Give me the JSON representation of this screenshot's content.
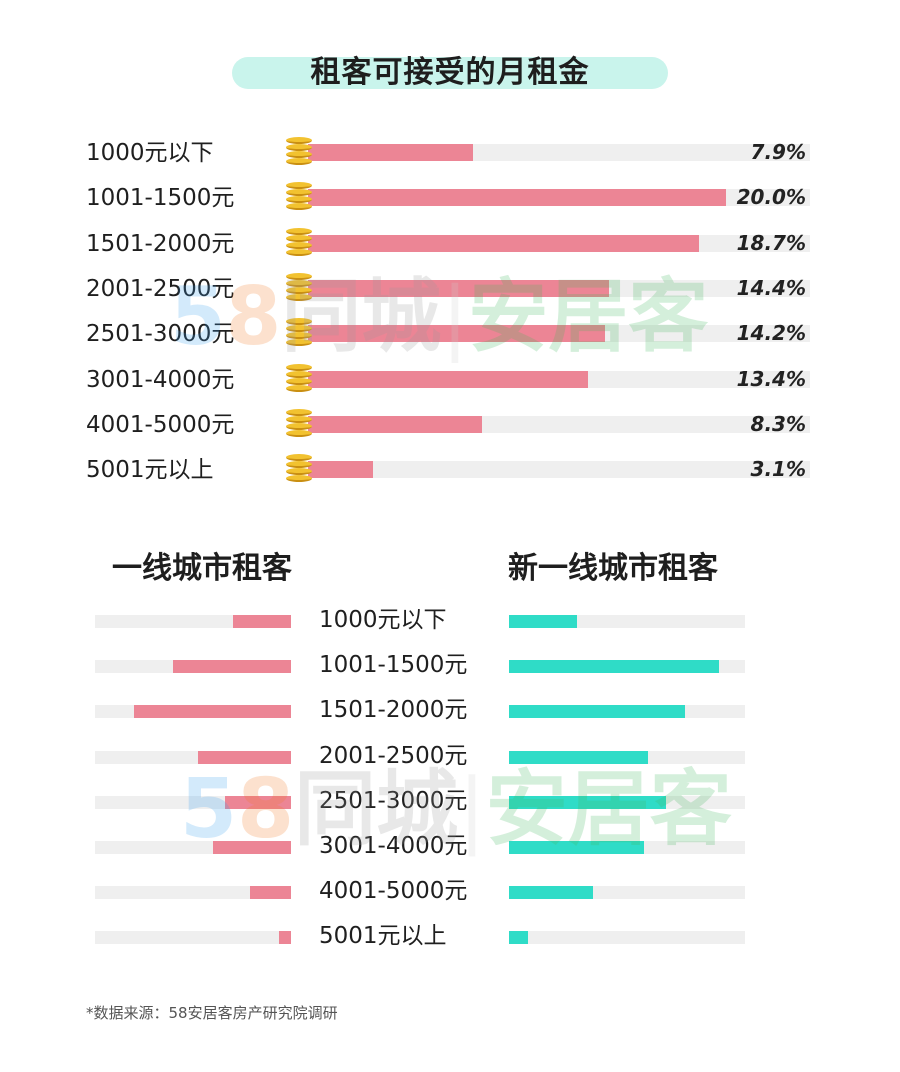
{
  "title": "租客可接受的月租金",
  "chart_data": [
    {
      "type": "bar",
      "orientation": "horizontal",
      "title": "租客可接受的月租金",
      "categories": [
        "1000元以下",
        "1001-1500元",
        "1501-2000元",
        "2001-2500元",
        "2501-3000元",
        "3001-4000元",
        "4001-5000元",
        "5001元以上"
      ],
      "values": [
        7.9,
        20.0,
        18.7,
        14.4,
        14.2,
        13.4,
        8.3,
        3.1
      ],
      "value_labels": [
        "7.9%",
        "20.0%",
        "18.7%",
        "14.4%",
        "14.2%",
        "13.4%",
        "8.3%",
        "3.1%"
      ],
      "unit": "%",
      "xlim": [
        0,
        24
      ],
      "colors": {
        "bar": "#ec8595",
        "track": "#efefef",
        "coin": "#f2c230"
      }
    },
    {
      "type": "bar",
      "orientation": "horizontal",
      "layout": "back-to-back",
      "categories": [
        "1000元以下",
        "1001-1500元",
        "1501-2000元",
        "2001-2500元",
        "2501-3000元",
        "3001-4000元",
        "4001-5000元",
        "5001元以上"
      ],
      "series": [
        {
          "name": "一线城市租客",
          "direction": "left",
          "values": [
            6.5,
            13.2,
            17.6,
            10.4,
            7.4,
            8.8,
            4.6,
            1.4
          ],
          "color": "#ec8595"
        },
        {
          "name": "新一线城市租客",
          "direction": "right",
          "values": [
            6.3,
            19.6,
            16.4,
            13.0,
            14.6,
            12.6,
            7.8,
            1.8
          ],
          "color": "#2fdcc7"
        }
      ],
      "unit": "%",
      "xlim": [
        0,
        22
      ],
      "colors": {
        "track": "#efefef"
      }
    }
  ],
  "watermark": {
    "num": "58",
    "tc": "同城",
    "sep": "|",
    "ajk": "安居客"
  },
  "source": "*数据来源：58安居客房产研究院调研"
}
